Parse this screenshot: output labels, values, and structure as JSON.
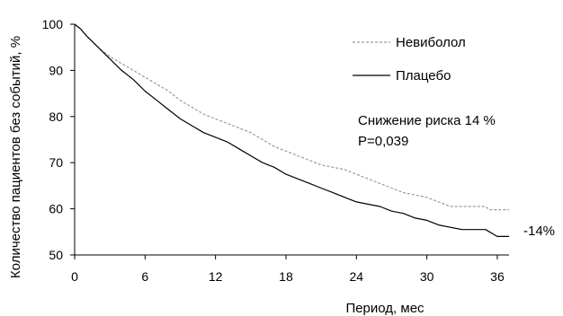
{
  "chart_data": {
    "type": "line",
    "xlabel": "Период, мес",
    "ylabel": "Количество пациентов без событий, %",
    "xlim": [
      0,
      37
    ],
    "ylim": [
      50,
      100
    ],
    "x_ticks": [
      "0",
      "6",
      "12",
      "18",
      "24",
      "30",
      "36"
    ],
    "y_ticks": [
      "50",
      "60",
      "70",
      "80",
      "90",
      "100"
    ],
    "grid": false,
    "legend_position": "top-right",
    "series": [
      {
        "name": "Невиболол",
        "style": "dashed",
        "color": "#9a9a9a",
        "points": [
          [
            0,
            100
          ],
          [
            0.5,
            99
          ],
          [
            1,
            97.5
          ],
          [
            2,
            95
          ],
          [
            3,
            93
          ],
          [
            4,
            91.5
          ],
          [
            5,
            90
          ],
          [
            6,
            88.5
          ],
          [
            7,
            87
          ],
          [
            8,
            85.5
          ],
          [
            9,
            83.5
          ],
          [
            10,
            82
          ],
          [
            11,
            80.5
          ],
          [
            12,
            79.5
          ],
          [
            13,
            78.5
          ],
          [
            14,
            77.5
          ],
          [
            15,
            76.5
          ],
          [
            16,
            75
          ],
          [
            17,
            73.5
          ],
          [
            18,
            72.5
          ],
          [
            19,
            71.5
          ],
          [
            20,
            70.5
          ],
          [
            21,
            69.5
          ],
          [
            22,
            69
          ],
          [
            23,
            68.5
          ],
          [
            24,
            67.5
          ],
          [
            25,
            66.5
          ],
          [
            26,
            65.5
          ],
          [
            27,
            64.5
          ],
          [
            28,
            63.5
          ],
          [
            29,
            63
          ],
          [
            30,
            62.5
          ],
          [
            31,
            61.5
          ],
          [
            31.5,
            61
          ],
          [
            32,
            60.5
          ],
          [
            33,
            60.5
          ],
          [
            34,
            60.5
          ],
          [
            35,
            60.5
          ],
          [
            35.3,
            59.8
          ],
          [
            37,
            59.8
          ]
        ]
      },
      {
        "name": "Плацебо",
        "style": "solid",
        "color": "#000000",
        "points": [
          [
            0,
            100
          ],
          [
            0.5,
            99
          ],
          [
            1,
            97.5
          ],
          [
            2,
            95
          ],
          [
            3,
            92.5
          ],
          [
            4,
            90
          ],
          [
            5,
            88
          ],
          [
            6,
            85.5
          ],
          [
            7,
            83.5
          ],
          [
            8,
            81.5
          ],
          [
            9,
            79.5
          ],
          [
            10,
            78
          ],
          [
            11,
            76.5
          ],
          [
            12,
            75.5
          ],
          [
            13,
            74.5
          ],
          [
            14,
            73
          ],
          [
            15,
            71.5
          ],
          [
            16,
            70
          ],
          [
            17,
            69
          ],
          [
            18,
            67.5
          ],
          [
            19,
            66.5
          ],
          [
            20,
            65.5
          ],
          [
            21,
            64.5
          ],
          [
            22,
            63.5
          ],
          [
            23,
            62.5
          ],
          [
            24,
            61.5
          ],
          [
            25,
            61
          ],
          [
            26,
            60.5
          ],
          [
            27,
            59.5
          ],
          [
            28,
            59
          ],
          [
            29,
            58
          ],
          [
            30,
            57.5
          ],
          [
            31,
            56.5
          ],
          [
            32,
            56
          ],
          [
            33,
            55.5
          ],
          [
            34,
            55.5
          ],
          [
            35,
            55.5
          ],
          [
            36,
            54
          ],
          [
            37,
            54
          ]
        ]
      }
    ],
    "annotations": {
      "risk_reduction": "Снижение риска 14 %",
      "p_value": "P=0,039",
      "end_label": "-14%"
    }
  }
}
